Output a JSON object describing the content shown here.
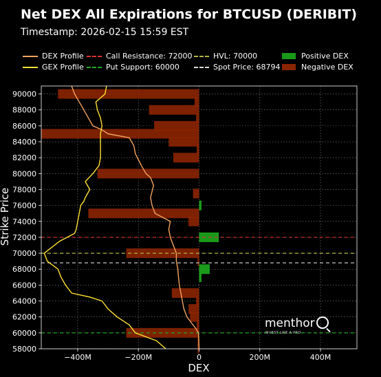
{
  "chart_data": {
    "type": "bar",
    "orientation": "horizontal",
    "title": "Net DEX All Expirations for BTCUSD (DERIBIT)",
    "subtitle": "Timestamp: 2026-02-15 15:59 EST",
    "xlabel": "DEX",
    "ylabel": "Strike Price",
    "xlim": [
      -520,
      520
    ],
    "ylim": [
      58000,
      91000
    ],
    "x_unit": "M",
    "xticks": [
      -400,
      -200,
      0,
      200,
      400
    ],
    "xtick_labels": [
      "−400M",
      "−200M",
      "0",
      "200M",
      "400M"
    ],
    "yticks": [
      58000,
      60000,
      62000,
      64000,
      66000,
      68000,
      70000,
      72000,
      74000,
      76000,
      78000,
      80000,
      82000,
      84000,
      86000,
      88000,
      90000
    ],
    "ytick_labels": [
      "58000",
      "60000",
      "62000",
      "64000",
      "66000",
      "68000",
      "70000",
      "72000",
      "74000",
      "76000",
      "78000",
      "80000",
      "82000",
      "84000",
      "86000",
      "88000",
      "90000"
    ],
    "grid": true,
    "legend_position": "top",
    "bars": [
      {
        "strike": 90000,
        "dex": -465
      },
      {
        "strike": 89000,
        "dex": -15
      },
      {
        "strike": 88000,
        "dex": -165
      },
      {
        "strike": 87000,
        "dex": -10
      },
      {
        "strike": 86000,
        "dex": -148
      },
      {
        "strike": 85000,
        "dex": -520
      },
      {
        "strike": 84000,
        "dex": -100
      },
      {
        "strike": 83000,
        "dex": -8
      },
      {
        "strike": 82000,
        "dex": -85
      },
      {
        "strike": 80000,
        "dex": -335
      },
      {
        "strike": 77500,
        "dex": -20
      },
      {
        "strike": 76000,
        "dex": 8
      },
      {
        "strike": 75000,
        "dex": -365
      },
      {
        "strike": 74000,
        "dex": -35
      },
      {
        "strike": 72000,
        "dex": 65
      },
      {
        "strike": 70000,
        "dex": -240
      },
      {
        "strike": 69000,
        "dex": -5
      },
      {
        "strike": 68000,
        "dex": 35
      },
      {
        "strike": 67000,
        "dex": 8
      },
      {
        "strike": 65000,
        "dex": -90
      },
      {
        "strike": 64000,
        "dex": -10
      },
      {
        "strike": 63000,
        "dex": -35
      },
      {
        "strike": 62000,
        "dex": -30
      },
      {
        "strike": 61000,
        "dex": -8
      },
      {
        "strike": 60000,
        "dex": -240
      },
      {
        "strike": 59000,
        "dex": -5
      },
      {
        "strike": 58000,
        "dex": -5
      }
    ],
    "series": [
      {
        "name": "DEX Profile",
        "color": "#f4a460",
        "points": [
          [
            -420,
            91000
          ],
          [
            -410,
            90000
          ],
          [
            -395,
            89000
          ],
          [
            -380,
            88000
          ],
          [
            -365,
            87000
          ],
          [
            -350,
            86000
          ],
          [
            -320,
            85500
          ],
          [
            -300,
            85000
          ],
          [
            -230,
            84500
          ],
          [
            -215,
            83500
          ],
          [
            -210,
            82500
          ],
          [
            -190,
            81000
          ],
          [
            -175,
            80000
          ],
          [
            -160,
            79500
          ],
          [
            -150,
            78500
          ],
          [
            -160,
            77000
          ],
          [
            -155,
            76000
          ],
          [
            -145,
            75000
          ],
          [
            -120,
            74500
          ],
          [
            -95,
            74000
          ],
          [
            -100,
            73000
          ],
          [
            -95,
            72000
          ],
          [
            -85,
            71000
          ],
          [
            -75,
            70000
          ],
          [
            -75,
            69000
          ],
          [
            -70,
            68000
          ],
          [
            -68,
            67000
          ],
          [
            -65,
            66000
          ],
          [
            -60,
            65000
          ],
          [
            -55,
            64000
          ],
          [
            -50,
            63000
          ],
          [
            -40,
            62000
          ],
          [
            -30,
            61500
          ],
          [
            -10,
            60500
          ],
          [
            -2,
            60000
          ],
          [
            0,
            58000
          ]
        ]
      },
      {
        "name": "GEX Profile",
        "color": "#ffe135",
        "points": [
          [
            -305,
            91000
          ],
          [
            -310,
            90000
          ],
          [
            -340,
            89000
          ],
          [
            -335,
            88000
          ],
          [
            -325,
            87000
          ],
          [
            -320,
            86000
          ],
          [
            -325,
            85000
          ],
          [
            -325,
            84000
          ],
          [
            -325,
            83000
          ],
          [
            -325,
            82000
          ],
          [
            -330,
            81000
          ],
          [
            -350,
            80000
          ],
          [
            -375,
            79000
          ],
          [
            -360,
            78000
          ],
          [
            -375,
            77000
          ],
          [
            -380,
            76500
          ],
          [
            -390,
            76000
          ],
          [
            -395,
            75000
          ],
          [
            -400,
            74000
          ],
          [
            -405,
            73000
          ],
          [
            -410,
            72500
          ],
          [
            -460,
            71500
          ],
          [
            -510,
            70000
          ],
          [
            -500,
            69000
          ],
          [
            -465,
            68000
          ],
          [
            -455,
            67000
          ],
          [
            -440,
            66000
          ],
          [
            -420,
            65000
          ],
          [
            -360,
            64500
          ],
          [
            -320,
            64000
          ],
          [
            -300,
            63000
          ],
          [
            -270,
            62000
          ],
          [
            -230,
            61000
          ],
          [
            -210,
            60000
          ],
          [
            -140,
            59000
          ],
          [
            -110,
            58000
          ]
        ]
      }
    ],
    "reference_lines": [
      {
        "name": "Call Resistance: 72000",
        "value": 72000,
        "color": "#e03030",
        "style": "dashed"
      },
      {
        "name": "Put Support: 60000",
        "value": 60000,
        "color": "#22aa22",
        "style": "dashed"
      },
      {
        "name": "HVL: 70000",
        "value": 70000,
        "color": "#b5b543",
        "style": "dashed"
      },
      {
        "name": "Spot Price: 68794",
        "value": 68794,
        "color": "#dddddd",
        "style": "dashed"
      }
    ],
    "legend": [
      {
        "label": "DEX Profile",
        "kind": "line",
        "color": "#f4a460"
      },
      {
        "label": "GEX Profile",
        "kind": "line",
        "color": "#ffe135"
      },
      {
        "label": "Call Resistance: 72000",
        "kind": "dashed",
        "color": "#e03030"
      },
      {
        "label": "Put Support: 60000",
        "kind": "dashed",
        "color": "#22aa22"
      },
      {
        "label": "HVL: 70000",
        "kind": "dashed",
        "color": "#b5b543"
      },
      {
        "label": "Spot Price: 68794",
        "kind": "dashed",
        "color": "#dddddd"
      },
      {
        "label": "Positive DEX",
        "kind": "box",
        "color": "#1a9a1a"
      },
      {
        "label": "Negative DEX",
        "kind": "box",
        "color": "#8b2500"
      }
    ],
    "bar_colors": {
      "positive": "#1a9a1a",
      "negative": "#8b2500"
    }
  },
  "watermark": {
    "brand": "menthor",
    "tagline": "INVEST LIKE A PRO"
  }
}
